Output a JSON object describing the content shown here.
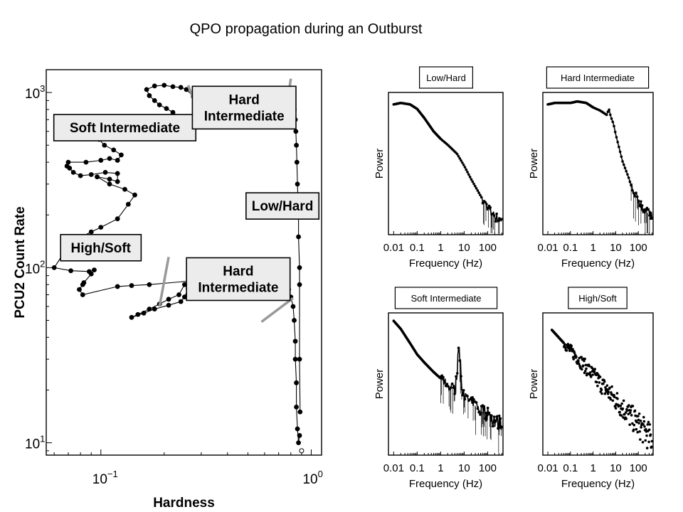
{
  "slide": {
    "title": "QPO propagation during an Outburst"
  },
  "colors": {
    "marker": "#000000",
    "transition": "#999999",
    "box_fill": "#ececec"
  },
  "chart_data": [
    {
      "type": "scatter",
      "name": "hid",
      "xlabel": "Hardness",
      "ylabel": "PCU2 Count Rate",
      "xscale": "log",
      "yscale": "log",
      "xlim": [
        0.055,
        1.12
      ],
      "ylim": [
        8.5,
        1350
      ],
      "xticks": [
        {
          "v": 0.1,
          "base": "10",
          "exp": "−1"
        },
        {
          "v": 1,
          "base": "10",
          "exp": "0"
        }
      ],
      "yticks": [
        {
          "v": 10,
          "base": "10",
          "exp": "1"
        },
        {
          "v": 100,
          "base": "10",
          "exp": "2"
        },
        {
          "v": 1000,
          "base": "10",
          "exp": "3"
        }
      ],
      "track": [
        [
          0.88,
          11
        ],
        [
          0.87,
          10
        ],
        [
          0.86,
          12
        ],
        [
          0.85,
          16
        ],
        [
          0.85,
          22
        ],
        [
          0.84,
          30
        ],
        [
          0.84,
          38
        ],
        [
          0.83,
          50
        ],
        [
          0.82,
          60
        ],
        [
          0.8,
          68
        ],
        [
          0.78,
          75
        ],
        [
          0.74,
          78
        ],
        [
          0.66,
          78
        ],
        [
          0.61,
          78
        ],
        [
          0.55,
          72
        ],
        [
          0.49,
          68
        ],
        [
          0.44,
          67
        ],
        [
          0.4,
          72
        ],
        [
          0.36,
          78
        ],
        [
          0.33,
          78
        ],
        [
          0.31,
          80
        ],
        [
          0.28,
          80
        ],
        [
          0.26,
          76
        ],
        [
          0.25,
          68
        ],
        [
          0.24,
          64
        ],
        [
          0.21,
          61
        ],
        [
          0.18,
          58
        ],
        [
          0.16,
          55
        ],
        [
          0.14,
          52
        ],
        [
          0.15,
          54
        ],
        [
          0.17,
          58
        ],
        [
          0.19,
          62
        ],
        [
          0.21,
          66
        ],
        [
          0.235,
          70
        ],
        [
          0.25,
          80
        ],
        [
          0.27,
          84
        ],
        [
          0.17,
          80
        ],
        [
          0.14,
          79
        ],
        [
          0.12,
          78
        ],
        [
          0.082,
          70
        ],
        [
          0.079,
          75
        ],
        [
          0.082,
          80
        ],
        [
          0.083,
          82
        ],
        [
          0.09,
          92
        ],
        [
          0.093,
          97
        ],
        [
          0.088,
          95
        ],
        [
          0.072,
          96
        ],
        [
          0.06,
          100
        ],
        [
          0.072,
          140
        ],
        [
          0.09,
          160
        ],
        [
          0.1,
          170
        ],
        [
          0.12,
          190
        ],
        [
          0.135,
          230
        ],
        [
          0.145,
          260
        ],
        [
          0.13,
          280
        ],
        [
          0.11,
          300
        ],
        [
          0.096,
          330
        ],
        [
          0.11,
          320
        ],
        [
          0.12,
          310
        ],
        [
          0.12,
          345
        ],
        [
          0.105,
          350
        ],
        [
          0.09,
          340
        ],
        [
          0.08,
          335
        ],
        [
          0.074,
          350
        ],
        [
          0.071,
          370
        ],
        [
          0.069,
          380
        ],
        [
          0.07,
          400
        ],
        [
          0.085,
          400
        ],
        [
          0.1,
          410
        ],
        [
          0.11,
          420
        ],
        [
          0.12,
          410
        ],
        [
          0.125,
          440
        ],
        [
          0.115,
          470
        ],
        [
          0.104,
          500
        ],
        [
          0.098,
          540
        ],
        [
          0.1,
          570
        ],
        [
          0.115,
          570
        ],
        [
          0.127,
          580
        ],
        [
          0.15,
          580
        ],
        [
          0.175,
          590
        ],
        [
          0.19,
          600
        ],
        [
          0.21,
          610
        ],
        [
          0.23,
          620
        ],
        [
          0.25,
          690
        ],
        [
          0.235,
          720
        ],
        [
          0.22,
          770
        ],
        [
          0.205,
          810
        ],
        [
          0.19,
          850
        ],
        [
          0.18,
          900
        ],
        [
          0.17,
          960
        ],
        [
          0.165,
          1040
        ],
        [
          0.18,
          1090
        ],
        [
          0.2,
          1100
        ],
        [
          0.22,
          1080
        ],
        [
          0.24,
          1070
        ],
        [
          0.255,
          1040
        ],
        [
          0.275,
          950
        ],
        [
          0.8,
          960
        ],
        [
          0.82,
          900
        ],
        [
          0.83,
          800
        ],
        [
          0.84,
          700
        ],
        [
          0.845,
          600
        ],
        [
          0.85,
          500
        ],
        [
          0.855,
          400
        ],
        [
          0.86,
          300
        ],
        [
          0.87,
          200
        ],
        [
          0.87,
          150
        ],
        [
          0.88,
          100
        ],
        [
          0.88,
          80
        ],
        [
          0.88,
          30
        ],
        [
          0.885,
          15
        ]
      ],
      "open_point": [
        0.9,
        9
      ],
      "transition_marks": [
        {
          "x": [
            0.26,
            0.29
          ],
          "y": [
            1100,
            780
          ]
        },
        {
          "x": [
            0.8,
            0.74
          ],
          "y": [
            1200,
            640
          ]
        },
        {
          "x": [
            0.21,
            0.19
          ],
          "y": [
            115,
            60
          ]
        },
        {
          "x": [
            0.58,
            0.82
          ],
          "y": [
            49,
            67
          ]
        }
      ],
      "state_labels": [
        {
          "lines": [
            "Soft Intermediate"
          ],
          "x": 0.13,
          "y": 630
        },
        {
          "lines": [
            "Hard",
            "Intermediate"
          ],
          "x": 0.48,
          "y": 820
        },
        {
          "lines": [
            "Low/Hard"
          ],
          "x": 0.73,
          "y": 225
        },
        {
          "lines": [
            "High/Soft"
          ],
          "x": 0.1,
          "y": 130
        },
        {
          "lines": [
            "Hard",
            "Intermediate"
          ],
          "x": 0.45,
          "y": 86
        }
      ]
    },
    {
      "type": "line",
      "name": "psd-low-hard",
      "title": "Low/Hard",
      "xlabel": "Frequency (Hz)",
      "ylabel": "Power",
      "xscale": "log",
      "xlim": [
        0.006,
        450
      ],
      "ylim": [
        -7.2,
        2.3
      ],
      "xticks": [
        "0.01",
        "0.1",
        "1",
        "10",
        "100"
      ],
      "x": [
        0.01,
        0.02,
        0.05,
        0.1,
        0.2,
        0.5,
        1,
        2,
        5,
        10,
        20,
        50,
        100,
        200,
        400
      ],
      "y": [
        1.5,
        1.6,
        1.5,
        1.2,
        0.6,
        -0.3,
        -0.8,
        -1.2,
        -1.8,
        -2.6,
        -3.5,
        -4.6,
        -5.4,
        -6.0,
        -6.3
      ],
      "noise_from": 60
    },
    {
      "type": "line",
      "name": "psd-hard-intermediate",
      "title": "Hard Intermediate",
      "xlabel": "Frequency (Hz)",
      "ylabel": "Power",
      "xscale": "log",
      "xlim": [
        0.006,
        450
      ],
      "ylim": [
        -7.2,
        2.3
      ],
      "xticks": [
        "0.01",
        "0.1",
        "1",
        "10",
        "100"
      ],
      "x": [
        0.01,
        0.02,
        0.05,
        0.1,
        0.2,
        0.5,
        1,
        2,
        4,
        5,
        6,
        8,
        10,
        20,
        50,
        100,
        200,
        400
      ],
      "y": [
        1.5,
        1.6,
        1.6,
        1.6,
        1.7,
        1.6,
        1.3,
        1.1,
        0.8,
        1.2,
        0.7,
        0.2,
        -0.5,
        -2.3,
        -3.9,
        -5.0,
        -5.6,
        -6.0
      ],
      "noise_from": 40
    },
    {
      "type": "line",
      "name": "psd-soft-intermediate",
      "title": "Soft Intermediate",
      "xlabel": "Frequency (Hz)",
      "ylabel": "Power",
      "xscale": "log",
      "xlim": [
        0.006,
        450
      ],
      "ylim": [
        -6.6,
        2.3
      ],
      "xticks": [
        "0.01",
        "0.1",
        "1",
        "10",
        "100"
      ],
      "x": [
        0.01,
        0.02,
        0.05,
        0.1,
        0.2,
        0.5,
        1,
        2,
        4,
        5,
        6,
        7,
        8,
        10,
        20,
        50,
        100,
        200,
        400
      ],
      "y": [
        1.8,
        1.3,
        0.4,
        -0.3,
        -0.8,
        -1.4,
        -1.8,
        -2.2,
        -2.5,
        -1.5,
        0.4,
        -1.0,
        -2.6,
        -3.0,
        -3.3,
        -3.8,
        -4.1,
        -4.4,
        -4.8
      ],
      "noise_from": 1
    },
    {
      "type": "scatter",
      "name": "psd-high-soft",
      "title": "High/Soft",
      "xlabel": "Frequency (Hz)",
      "ylabel": "Power",
      "xscale": "log",
      "xlim": [
        0.006,
        450
      ],
      "ylim": [
        -6.6,
        2.6
      ],
      "xticks": [
        "0.01",
        "0.1",
        "1",
        "10",
        "100"
      ],
      "x": [
        0.015,
        400
      ],
      "y": [
        1.5,
        -5.6
      ],
      "noise_from": 0.05
    }
  ]
}
